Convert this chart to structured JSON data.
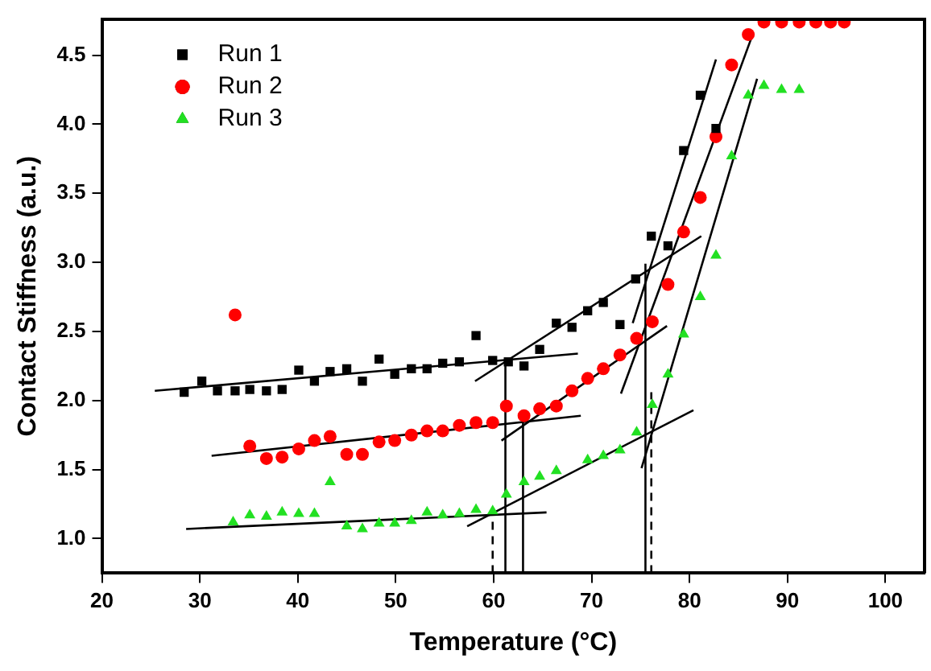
{
  "chart_data": {
    "type": "scatter",
    "xlabel": "Temperature (°C)",
    "ylabel": "Contact Stiffness (a.u.)",
    "xlim": [
      20,
      104
    ],
    "ylim": [
      0.75,
      4.76
    ],
    "xticks": [
      20,
      30,
      40,
      50,
      60,
      70,
      80,
      90,
      100
    ],
    "yticks": [
      {
        "value": 1,
        "label": "1.0"
      },
      {
        "value": 1.5,
        "label": "1.5"
      },
      {
        "value": 2,
        "label": "2.0"
      },
      {
        "value": 2.5,
        "label": "2.5"
      },
      {
        "value": 3,
        "label": "3.0"
      },
      {
        "value": 3.5,
        "label": "3.5"
      },
      {
        "value": 4,
        "label": "4.0"
      },
      {
        "value": 4.5,
        "label": "4.5"
      }
    ],
    "grid": false,
    "legend": "top left",
    "series": [
      {
        "name": "Run 1",
        "marker": "square",
        "color": "#000000",
        "x": [
          28.4,
          30.2,
          31.8,
          33.6,
          35.1,
          36.8,
          38.4,
          40.1,
          41.7,
          43.3,
          45.0,
          46.6,
          48.3,
          49.9,
          51.6,
          53.2,
          54.8,
          56.5,
          58.2,
          59.9,
          61.5,
          63.1,
          64.7,
          66.4,
          68.0,
          69.6,
          71.2,
          72.9,
          74.5,
          76.1,
          77.8,
          79.4,
          81.1,
          82.7
        ],
        "values": [
          2.06,
          2.14,
          2.07,
          2.07,
          2.08,
          2.07,
          2.08,
          2.22,
          2.14,
          2.21,
          2.23,
          2.14,
          2.3,
          2.19,
          2.23,
          2.23,
          2.27,
          2.28,
          2.47,
          2.29,
          2.28,
          2.25,
          2.37,
          2.56,
          2.53,
          2.65,
          2.71,
          2.55,
          2.88,
          3.19,
          3.12,
          3.81,
          4.21,
          3.97
        ]
      },
      {
        "name": "Run 2",
        "marker": "circle",
        "color": "#ff0000",
        "x": [
          33.6,
          35.1,
          36.8,
          38.4,
          40.1,
          41.7,
          43.3,
          45.0,
          46.6,
          48.3,
          49.9,
          51.6,
          53.2,
          54.8,
          56.5,
          58.2,
          59.9,
          61.3,
          63.1,
          64.7,
          66.4,
          68.0,
          69.6,
          71.2,
          72.9,
          74.6,
          76.2,
          77.8,
          79.4,
          81.1,
          82.7,
          84.3,
          86.0,
          87.6,
          89.4,
          91.2,
          92.9,
          94.4,
          95.8
        ],
        "values": [
          2.62,
          1.67,
          1.58,
          1.59,
          1.65,
          1.71,
          1.74,
          1.61,
          1.61,
          1.7,
          1.71,
          1.75,
          1.78,
          1.78,
          1.82,
          1.84,
          1.84,
          1.96,
          1.89,
          1.94,
          1.96,
          2.07,
          2.16,
          2.23,
          2.33,
          2.45,
          2.57,
          2.84,
          3.22,
          3.47,
          3.91,
          4.43,
          4.65,
          4.74,
          4.74,
          4.74,
          4.74,
          4.74,
          4.74
        ]
      },
      {
        "name": "Run 3",
        "marker": "triangle",
        "color": "#22e022",
        "x": [
          33.4,
          35.1,
          36.8,
          38.4,
          40.1,
          41.7,
          43.3,
          45.0,
          46.6,
          48.3,
          49.9,
          51.6,
          53.2,
          54.8,
          56.5,
          58.2,
          59.9,
          61.3,
          63.1,
          64.7,
          66.4,
          69.6,
          71.2,
          72.9,
          74.6,
          76.2,
          77.8,
          79.4,
          81.1,
          82.7,
          84.3,
          86.0,
          87.6,
          89.4,
          91.2
        ],
        "values": [
          1.12,
          1.17,
          1.16,
          1.19,
          1.18,
          1.18,
          1.41,
          1.09,
          1.07,
          1.11,
          1.11,
          1.13,
          1.19,
          1.17,
          1.18,
          1.21,
          1.2,
          1.32,
          1.41,
          1.45,
          1.49,
          1.57,
          1.6,
          1.64,
          1.77,
          1.97,
          2.19,
          2.48,
          2.75,
          3.05,
          3.77,
          4.21,
          4.28,
          4.25,
          4.25
        ]
      },
      {
        "type": "line",
        "color": "#000000",
        "x": [
          25.4,
          68.6
        ],
        "values": [
          2.07,
          2.34
        ]
      },
      {
        "type": "line",
        "color": "#000000",
        "x": [
          58.1,
          81.2
        ],
        "values": [
          2.14,
          3.19
        ]
      },
      {
        "type": "line",
        "color": "#000000",
        "x": [
          74.2,
          82.7
        ],
        "values": [
          2.56,
          4.47
        ]
      },
      {
        "type": "line",
        "color": "#000000",
        "x": [
          31.2,
          68.9
        ],
        "values": [
          1.6,
          1.89
        ]
      },
      {
        "type": "line",
        "color": "#000000",
        "x": [
          60.8,
          77.7
        ],
        "values": [
          1.71,
          2.54
        ]
      },
      {
        "type": "line",
        "color": "#000000",
        "x": [
          73.0,
          86.5
        ],
        "values": [
          2.05,
          4.66
        ]
      },
      {
        "type": "line",
        "color": "#000000",
        "x": [
          28.6,
          65.4
        ],
        "values": [
          1.07,
          1.19
        ]
      },
      {
        "type": "line",
        "color": "#000000",
        "x": [
          57.3,
          80.4
        ],
        "values": [
          1.09,
          1.93
        ]
      },
      {
        "type": "line",
        "color": "#000000",
        "x": [
          75.1,
          86.9
        ],
        "values": [
          1.51,
          4.33
        ]
      },
      {
        "type": "line",
        "color": "#000000",
        "x": [
          61.2,
          61.2
        ],
        "values": [
          0.75,
          2.28
        ]
      },
      {
        "type": "line",
        "color": "#000000",
        "x": [
          63.0,
          63.0
        ],
        "values": [
          0.75,
          1.89
        ]
      },
      {
        "type": "line",
        "color": "#000000",
        "x": [
          75.5,
          75.5
        ],
        "values": [
          0.75,
          2.99
        ]
      },
      {
        "type": "line",
        "color": "#000000",
        "line_style": "dashed",
        "x": [
          59.9,
          59.9
        ],
        "values": [
          0.75,
          1.22
        ]
      },
      {
        "type": "line",
        "color": "#000000",
        "line_style": "dashed",
        "x": [
          76.1,
          76.1
        ],
        "values": [
          0.75,
          2.06
        ]
      }
    ]
  }
}
